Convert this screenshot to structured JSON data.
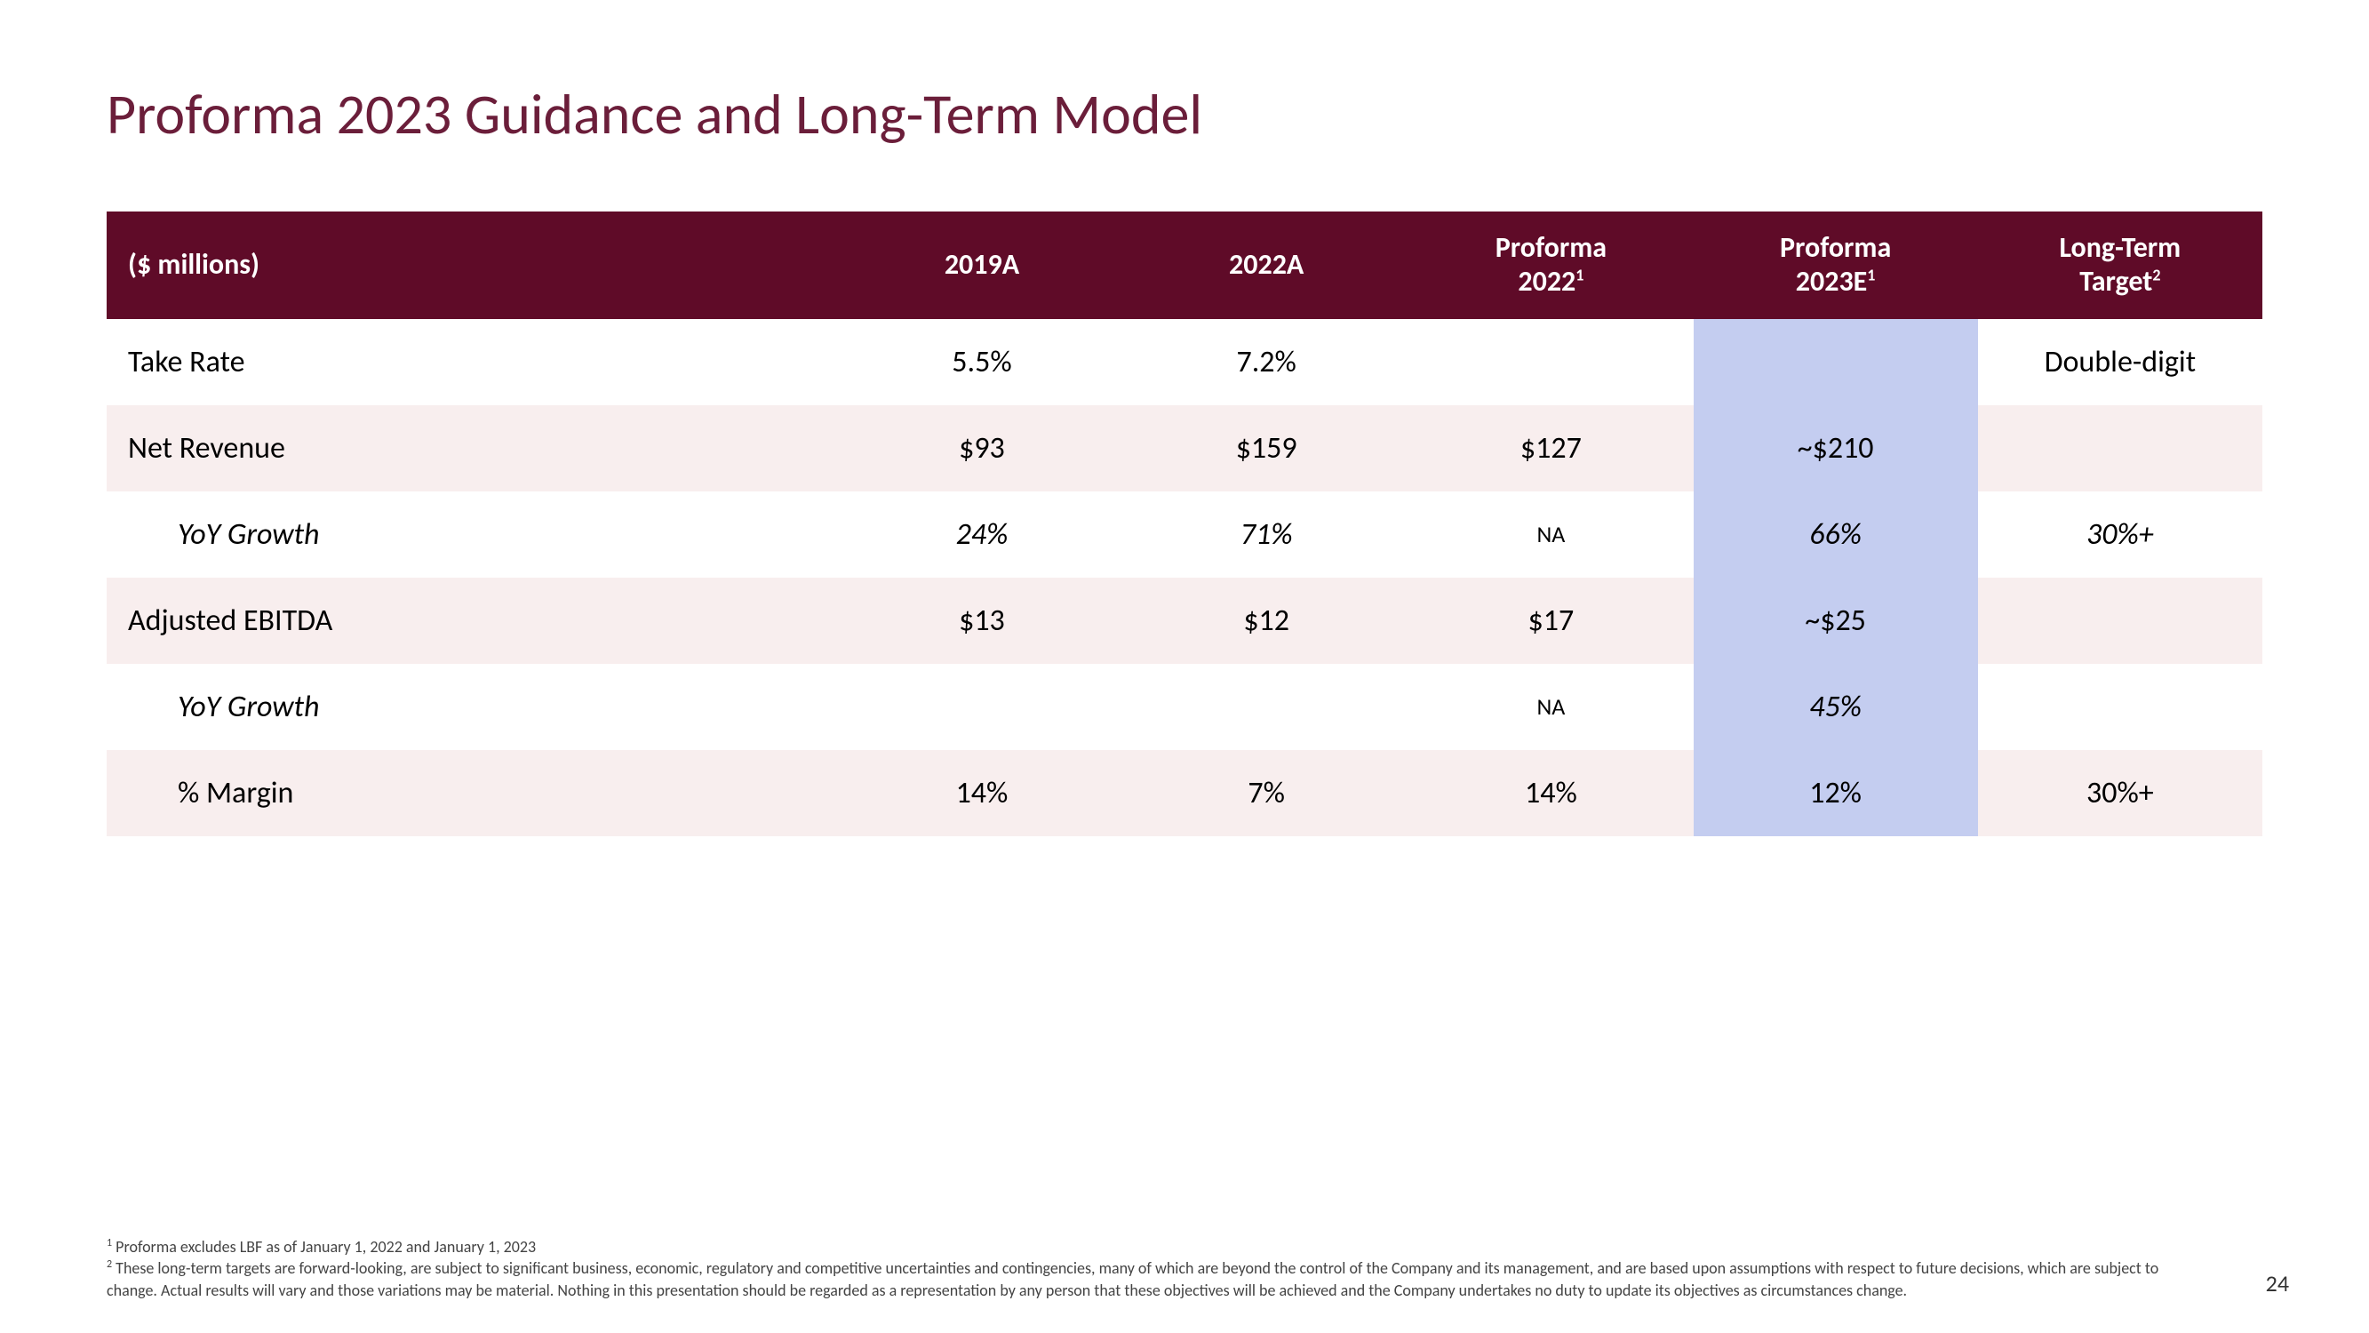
{
  "title": "Proforma 2023 Guidance and Long-Term Model",
  "title_color": "#6b1e3a",
  "page_number": "24",
  "table": {
    "header_bg": "#5f0b28",
    "header_fg": "#ffffff",
    "row_even_bg": "#ffffff",
    "row_odd_bg": "#f8eeee",
    "highlight_bg": "#c4cdf0",
    "text_color": "#000000",
    "fontsize_header": 32,
    "fontsize_cell": 34,
    "columns": [
      {
        "key": "label",
        "header": "($ millions)",
        "align": "left"
      },
      {
        "key": "c2019A",
        "header": "2019A",
        "align": "center"
      },
      {
        "key": "c2022A",
        "header": "2022A",
        "align": "center"
      },
      {
        "key": "pf2022",
        "header": "Proforma 2022",
        "sup": "1",
        "align": "center"
      },
      {
        "key": "pf2023E",
        "header": "Proforma 2023E",
        "sup": "1",
        "align": "center",
        "highlight": true
      },
      {
        "key": "ltt",
        "header": "Long-Term Target",
        "sup": "2",
        "align": "center"
      }
    ],
    "rows": [
      {
        "label": "Take Rate",
        "c2019A": "5.5%",
        "c2022A": "7.2%",
        "pf2022": "",
        "pf2023E": "",
        "ltt": "Double-digit",
        "bg": "even"
      },
      {
        "label": "Net Revenue",
        "c2019A": "$93",
        "c2022A": "$159",
        "pf2022": "$127",
        "pf2023E": "~$210",
        "ltt": "",
        "bg": "odd"
      },
      {
        "label": "YoY Growth",
        "c2019A": "24%",
        "c2022A": "71%",
        "pf2022": "NA",
        "pf2023E": "66%",
        "ltt": "30%+",
        "bg": "even",
        "italic": true,
        "indent": true,
        "na_col": "pf2022"
      },
      {
        "label": "Adjusted EBITDA",
        "c2019A": "$13",
        "c2022A": "$12",
        "pf2022": "$17",
        "pf2023E": "~$25",
        "ltt": "",
        "bg": "odd"
      },
      {
        "label": "YoY Growth",
        "c2019A": "",
        "c2022A": "",
        "pf2022": "NA",
        "pf2023E": "45%",
        "ltt": "",
        "bg": "even",
        "italic": true,
        "indent": true,
        "na_col": "pf2022"
      },
      {
        "label": "% Margin",
        "c2019A": "14%",
        "c2022A": "7%",
        "pf2022": "14%",
        "pf2023E": "12%",
        "ltt": "30%+",
        "bg": "odd",
        "indent": true
      }
    ]
  },
  "footnotes": {
    "f1": "Proforma excludes LBF as of January 1, 2022 and January 1, 2023",
    "f2": "These long-term targets are forward-looking, are subject to significant business, economic, regulatory and competitive uncertainties and contingencies, many of which are beyond the control of the Company and its management, and are based upon assumptions with respect to future decisions, which are subject to change. Actual results will vary and those variations may be material. Nothing in this presentation should be regarded as a representation by any person that these objectives will be achieved and the Company undertakes no duty to update its objectives as circumstances change."
  }
}
